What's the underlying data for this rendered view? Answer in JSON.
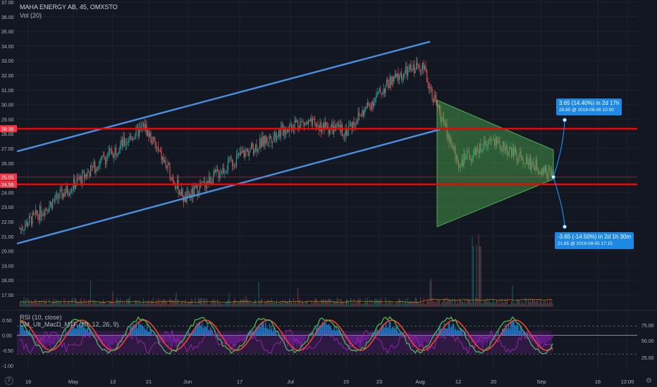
{
  "header": {
    "symbol": "MAHA ENERGY AB, 45, OMXSTO",
    "volume_label": "Vol (20)"
  },
  "rsi_legend": "RSI (10, close)",
  "cm_legend": "CM_Ult_MacD_MTF (60, 12, 26, 9)",
  "price_axis": {
    "ticks": [
      "37.00",
      "36.00",
      "35.00",
      "34.00",
      "33.00",
      "32.00",
      "31.00",
      "30.00",
      "29.00",
      "28.00",
      "27.00",
      "26.00",
      "25.00",
      "24.00",
      "23.00",
      "22.00",
      "21.00",
      "20.00",
      "19.00",
      "18.00",
      "17.00"
    ],
    "badges": [
      {
        "label": "28.35",
        "value": 28.35,
        "color": "#f23645"
      },
      {
        "label": "25.05",
        "value": 25.05,
        "color": "#f23645"
      },
      {
        "label": "24.55",
        "value": 24.55,
        "color": "#f23645"
      }
    ]
  },
  "osc_axis": {
    "left_ticks": [
      "0.50",
      "0.00",
      "-0.50",
      "-1.00"
    ],
    "right_ticks": [
      "75.00",
      "50.00",
      "25.00"
    ]
  },
  "time_axis": {
    "ticks": [
      "16",
      "May",
      "13",
      "21",
      "Jun",
      "17",
      "Jul",
      "15",
      "23",
      "Aug",
      "12",
      "20",
      "Sep",
      "16",
      "12:00"
    ]
  },
  "callouts": {
    "up": {
      "main": "3.65 (14.40%) in 2d 17h",
      "sub": "28.95 @ 2019-09-06 10:00"
    },
    "down": {
      "main": "-3.65 (-14.50%) in 2d 1h 30m",
      "sub": "21.65 @ 2019-09-05 17:15"
    }
  },
  "colors": {
    "background": "#131722",
    "grid": "#1e222d",
    "up": "#26a69a",
    "down": "#ef5350",
    "channel": "#4a90e2",
    "support_resistance": "#ff0000",
    "triangle_fill": "#4caf50",
    "rsi_purple": "#7b1fa2",
    "macd_blue": "#2196f3"
  },
  "chart_data": {
    "type": "candlestick",
    "title": "MAHA ENERGY AB, 45, OMXSTO",
    "price_range": [
      16.5,
      37.2
    ],
    "horizontal_levels": [
      28.35,
      25.05,
      24.55
    ],
    "close_path_keypoints": [
      {
        "x": "16",
        "y": 21.5
      },
      {
        "x": "May",
        "y": 24.5
      },
      {
        "x": "13",
        "y": 26.8
      },
      {
        "x": "21",
        "y": 28.5
      },
      {
        "x": "Jun",
        "y": 23.5
      },
      {
        "x": "17",
        "y": 26.5
      },
      {
        "x": "Jul",
        "y": 28.8
      },
      {
        "x": "15",
        "y": 28.2
      },
      {
        "x": "23",
        "y": 31.5
      },
      {
        "x": "Aug",
        "y": 32.8
      },
      {
        "x": "12",
        "y": 26.0
      },
      {
        "x": "20",
        "y": 27.5
      },
      {
        "x": "Sep",
        "y": 25.1
      }
    ],
    "triangle_pattern": {
      "top": 30.3,
      "bottom": 21.65,
      "apex": 25.05
    },
    "channel": {
      "upper": [
        [
          26.8,
          "start"
        ],
        [
          34.3,
          "Aug"
        ]
      ],
      "lower": [
        [
          20.5,
          "start"
        ],
        [
          28.2,
          "Aug"
        ]
      ]
    },
    "projections": [
      {
        "change": 3.65,
        "pct": "14.40%",
        "target": 28.95
      },
      {
        "change": -3.65,
        "pct": "-14.50%",
        "target": 21.65
      }
    ],
    "oscillator": {
      "ylim": [
        -1.2,
        0.8
      ],
      "rsi_levels": [
        75,
        50,
        25
      ]
    }
  }
}
